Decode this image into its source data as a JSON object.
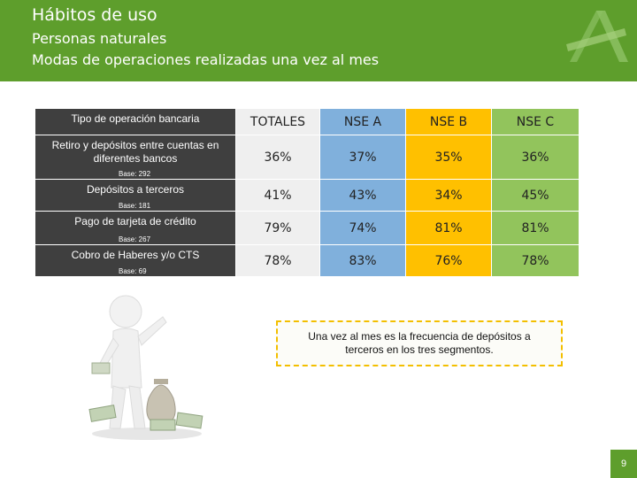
{
  "header": {
    "title": "Hábitos de uso",
    "subtitle": "Personas naturales",
    "subtitle2": "Modas de operaciones realizadas una vez al mes"
  },
  "chart_data": {
    "type": "table",
    "title": "Modas de operaciones realizadas una vez al mes",
    "row_header": "Tipo de operación bancaria",
    "columns": [
      "TOTALES",
      "NSE A",
      "NSE B",
      "NSE C"
    ],
    "rows": [
      {
        "label": "Retiro y depósitos entre cuentas en diferentes bancos",
        "base": "Base: 292",
        "values": [
          "36%",
          "37%",
          "35%",
          "36%"
        ]
      },
      {
        "label": "Depósitos a terceros",
        "base": "Base: 181",
        "values": [
          "41%",
          "43%",
          "34%",
          "45%"
        ]
      },
      {
        "label": "Pago de tarjeta de crédito",
        "base": "Base: 267",
        "values": [
          "79%",
          "74%",
          "81%",
          "81%"
        ]
      },
      {
        "label": "Cobro de Haberes y/o CTS",
        "base": "Base: 69",
        "values": [
          "78%",
          "83%",
          "76%",
          "78%"
        ]
      }
    ]
  },
  "note": "Una vez al mes es la frecuencia de depósitos a terceros en los tres segmentos.",
  "page_number": "9",
  "colors": {
    "header": "#5e9e2c",
    "label_bg": "#3f3f3f",
    "totales": "#efefef",
    "nse_a": "#80b0dc",
    "nse_b": "#ffc000",
    "nse_c": "#92c45c"
  }
}
